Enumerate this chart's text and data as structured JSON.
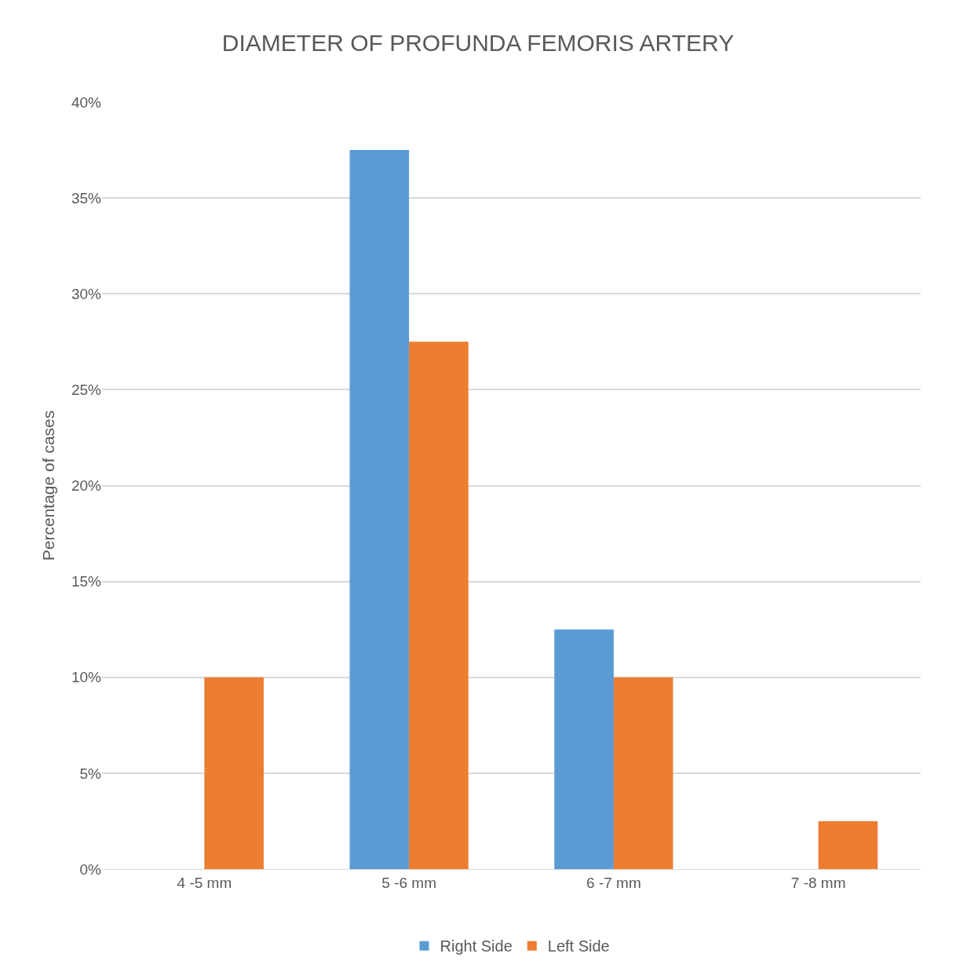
{
  "chart_data": {
    "type": "bar",
    "title": "DIAMETER OF PROFUNDA FEMORIS ARTERY",
    "ylabel": "Percentage of cases",
    "categories": [
      "4 -5 mm",
      "5 -6 mm",
      "6 -7 mm",
      "7 -8 mm"
    ],
    "series": [
      {
        "name": "Right Side",
        "color": "#5b9bd5",
        "values": [
          0,
          37.5,
          12.5,
          0
        ]
      },
      {
        "name": "Left Side",
        "color": "#ed7d31",
        "values": [
          10,
          27.5,
          10,
          2.5
        ]
      }
    ],
    "ylim": [
      0,
      40
    ],
    "yticks": [
      {
        "value": 0,
        "label": "0%"
      },
      {
        "value": 5,
        "label": "5%"
      },
      {
        "value": 10,
        "label": "10%"
      },
      {
        "value": 15,
        "label": "15%"
      },
      {
        "value": 20,
        "label": "20%"
      },
      {
        "value": 25,
        "label": "25%"
      },
      {
        "value": 30,
        "label": "30%"
      },
      {
        "value": 35,
        "label": "35%"
      },
      {
        "value": 40,
        "label": "40%"
      }
    ],
    "grid": "y",
    "legend": "bottom"
  }
}
